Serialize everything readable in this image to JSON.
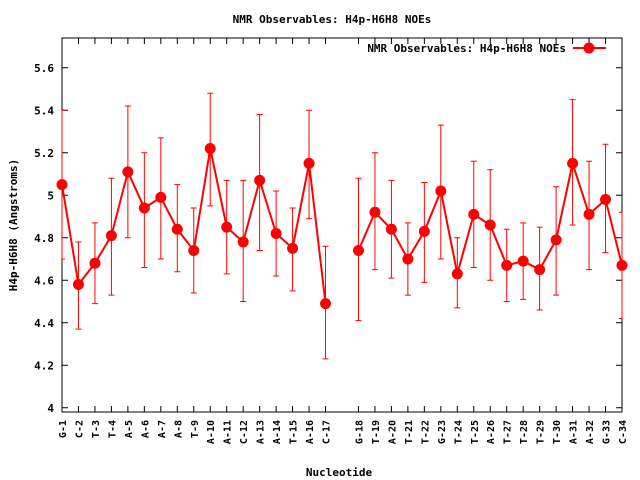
{
  "chart_data": {
    "type": "line",
    "title": "NMR Observables: H4p-H6H8 NOEs",
    "xlabel": "Nucleotide",
    "ylabel": "H4p-H6H8 (Angstroms)",
    "ylim": [
      3.98,
      5.74
    ],
    "yticks": [
      4,
      4.2,
      4.4,
      4.6,
      4.8,
      5,
      5.2,
      5.4,
      5.6
    ],
    "ytick_labels": [
      "4",
      "4.2",
      "4.4",
      "4.6",
      "4.8",
      "5",
      "5.2",
      "5.4",
      "5.6"
    ],
    "grid": false,
    "legend_position": "top-right",
    "colors": {
      "series": "#ff0000",
      "axis": "#000000"
    },
    "series": [
      {
        "name": "NMR Observables: H4p-H6H8 NOEs",
        "segments": [
          [
            {
              "label": "G-1",
              "y": 5.05,
              "ylo": 4.7,
              "yhi": 5.4
            },
            {
              "label": "C-2",
              "y": 4.58,
              "ylo": 4.37,
              "yhi": 4.78
            },
            {
              "label": "T-3",
              "y": 4.68,
              "ylo": 4.49,
              "yhi": 4.87
            },
            {
              "label": "T-4",
              "y": 4.81,
              "ylo": 4.53,
              "yhi": 5.08
            },
            {
              "label": "A-5",
              "y": 5.11,
              "ylo": 4.8,
              "yhi": 5.42
            },
            {
              "label": "A-6",
              "y": 4.94,
              "ylo": 4.66,
              "yhi": 5.2
            },
            {
              "label": "A-7",
              "y": 4.99,
              "ylo": 4.7,
              "yhi": 5.27
            },
            {
              "label": "A-8",
              "y": 4.84,
              "ylo": 4.64,
              "yhi": 5.05
            },
            {
              "label": "T-9",
              "y": 4.74,
              "ylo": 4.54,
              "yhi": 4.94
            },
            {
              "label": "A-10",
              "y": 5.22,
              "ylo": 4.95,
              "yhi": 5.48
            },
            {
              "label": "A-11",
              "y": 4.85,
              "ylo": 4.63,
              "yhi": 5.07
            },
            {
              "label": "C-12",
              "y": 4.78,
              "ylo": 4.5,
              "yhi": 5.07
            },
            {
              "label": "A-13",
              "y": 5.07,
              "ylo": 4.74,
              "yhi": 5.38
            },
            {
              "label": "A-14",
              "y": 4.82,
              "ylo": 4.62,
              "yhi": 5.02
            },
            {
              "label": "T-15",
              "y": 4.75,
              "ylo": 4.55,
              "yhi": 4.94
            },
            {
              "label": "A-16",
              "y": 5.15,
              "ylo": 4.89,
              "yhi": 5.4
            },
            {
              "label": "C-17",
              "y": 4.49,
              "ylo": 4.23,
              "yhi": 4.76
            }
          ],
          [
            {
              "label": "G-18",
              "y": 4.74,
              "ylo": 4.41,
              "yhi": 5.08
            },
            {
              "label": "T-19",
              "y": 4.92,
              "ylo": 4.65,
              "yhi": 5.2
            },
            {
              "label": "A-20",
              "y": 4.84,
              "ylo": 4.61,
              "yhi": 5.07
            },
            {
              "label": "T-21",
              "y": 4.7,
              "ylo": 4.53,
              "yhi": 4.87
            },
            {
              "label": "T-22",
              "y": 4.83,
              "ylo": 4.59,
              "yhi": 5.06
            },
            {
              "label": "G-23",
              "y": 5.02,
              "ylo": 4.7,
              "yhi": 5.33
            },
            {
              "label": "T-24",
              "y": 4.63,
              "ylo": 4.47,
              "yhi": 4.8
            },
            {
              "label": "T-25",
              "y": 4.91,
              "ylo": 4.66,
              "yhi": 5.16
            },
            {
              "label": "A-26",
              "y": 4.86,
              "ylo": 4.6,
              "yhi": 5.12
            },
            {
              "label": "T-27",
              "y": 4.67,
              "ylo": 4.5,
              "yhi": 4.84
            },
            {
              "label": "T-28",
              "y": 4.69,
              "ylo": 4.51,
              "yhi": 4.87
            },
            {
              "label": "T-29",
              "y": 4.65,
              "ylo": 4.46,
              "yhi": 4.85
            },
            {
              "label": "T-30",
              "y": 4.79,
              "ylo": 4.53,
              "yhi": 5.04
            },
            {
              "label": "A-31",
              "y": 5.15,
              "ylo": 4.86,
              "yhi": 5.45
            },
            {
              "label": "A-32",
              "y": 4.91,
              "ylo": 4.65,
              "yhi": 5.16
            },
            {
              "label": "G-33",
              "y": 4.98,
              "ylo": 4.73,
              "yhi": 5.24
            },
            {
              "label": "C-34",
              "y": 4.67,
              "ylo": 4.42,
              "yhi": 4.92
            }
          ]
        ]
      }
    ]
  }
}
